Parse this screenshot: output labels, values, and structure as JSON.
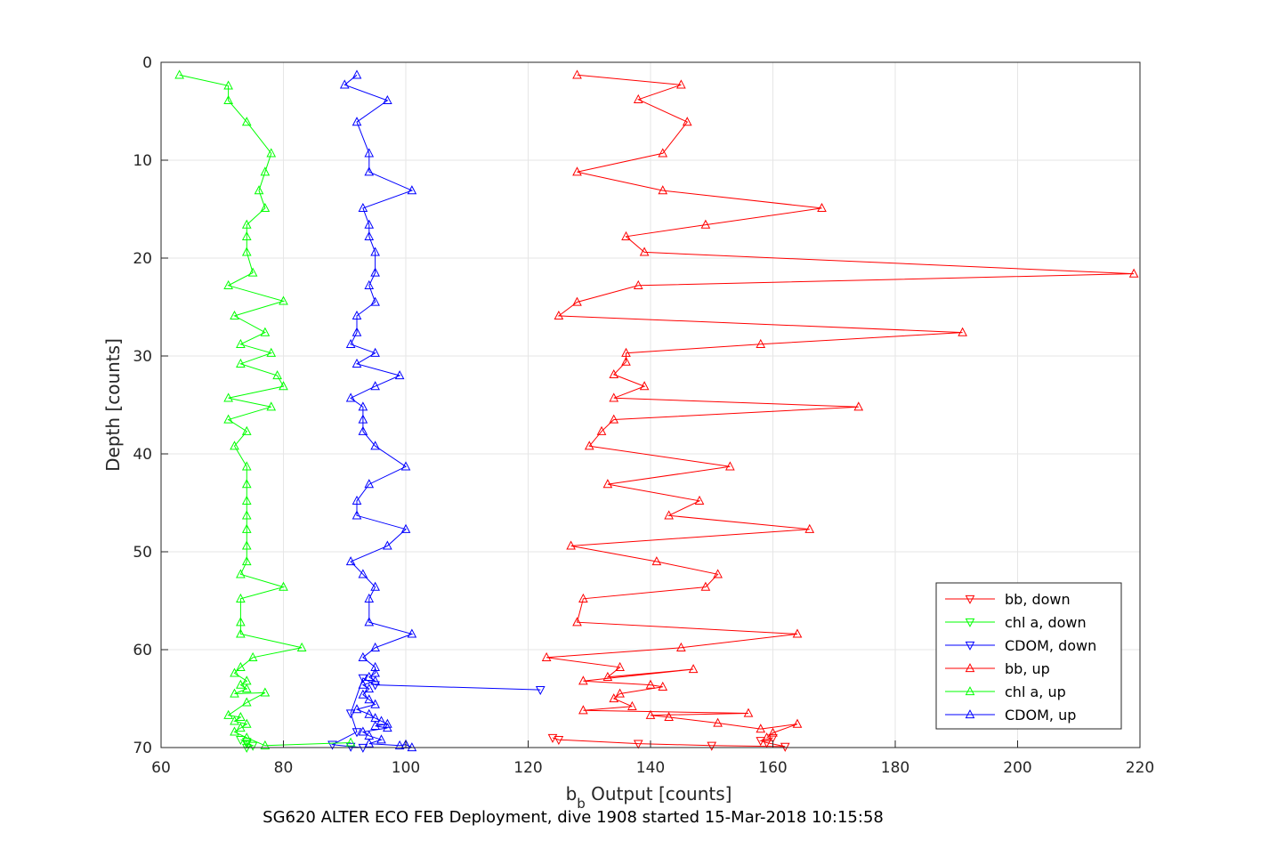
{
  "chart_data": {
    "type": "line",
    "xlabel_main": "b",
    "xlabel_sub": "b",
    "xlabel_rest": " Output [counts]",
    "ylabel": "Depth [counts]",
    "caption": "SG620 ALTER ECO FEB Deployment, dive 1908 started 15-Mar-2018 10:15:58",
    "xlim": [
      60,
      220
    ],
    "ylim": [
      0,
      70
    ],
    "y_reversed": true,
    "grid": true,
    "legend_position": "bottom-right",
    "x_ticks": [
      "60",
      "80",
      "100",
      "120",
      "140",
      "160",
      "180",
      "200",
      "220"
    ],
    "y_ticks": [
      "0",
      "10",
      "20",
      "30",
      "40",
      "50",
      "60",
      "70"
    ],
    "series": [
      {
        "name": "bb, down",
        "color": "#ff0000",
        "marker": "triangle-down",
        "x": [
          124,
          125,
          138,
          150,
          162,
          159,
          158,
          160
        ],
        "y": [
          69.0,
          69.2,
          69.6,
          69.8,
          69.9,
          69.5,
          69.3,
          69.0
        ]
      },
      {
        "name": "chl a, down",
        "color": "#00ff00",
        "marker": "triangle-down",
        "x": [
          73,
          74,
          74,
          75,
          74
        ],
        "y": [
          69.2,
          69.4,
          69.6,
          69.8,
          70.0
        ]
      },
      {
        "name": "CDOM, down",
        "color": "#0000ff",
        "marker": "triangle-down",
        "x": [
          122,
          95,
          93,
          91,
          92,
          88,
          91,
          93
        ],
        "y": [
          64.1,
          63.6,
          62.9,
          66.5,
          68.4,
          69.7,
          69.9,
          70.0
        ]
      },
      {
        "name": "bb, up",
        "color": "#ff0000",
        "marker": "triangle-up",
        "x": [
          128,
          145,
          138,
          146,
          142,
          128,
          142,
          168,
          149,
          136,
          139,
          219,
          138,
          128,
          125,
          191,
          158,
          136,
          136,
          134,
          139,
          134,
          174,
          134,
          132,
          130,
          153,
          133,
          148,
          143,
          166,
          127,
          141,
          151,
          149,
          129,
          128,
          164,
          145,
          123,
          135,
          133,
          147,
          129,
          140,
          142,
          135,
          134,
          137,
          129,
          156,
          140,
          143,
          151,
          158,
          164,
          160,
          159
        ],
        "y": [
          1.3,
          2.3,
          3.8,
          6.1,
          9.3,
          11.2,
          13.1,
          14.9,
          16.6,
          17.8,
          19.4,
          21.6,
          22.8,
          24.5,
          25.9,
          27.6,
          28.8,
          29.7,
          30.6,
          31.9,
          33.1,
          34.3,
          35.2,
          36.5,
          37.7,
          39.2,
          41.3,
          43.1,
          44.8,
          46.3,
          47.7,
          49.4,
          51.0,
          52.3,
          53.6,
          54.8,
          57.2,
          58.4,
          59.8,
          60.8,
          61.8,
          62.8,
          62.0,
          63.2,
          63.6,
          63.8,
          64.5,
          65.0,
          65.8,
          66.2,
          66.5,
          66.7,
          66.9,
          67.5,
          68.1,
          67.6,
          68.5,
          69.0
        ]
      },
      {
        "name": "chl a, up",
        "color": "#00ff00",
        "marker": "triangle-up",
        "x": [
          63,
          71,
          71,
          74,
          78,
          77,
          76,
          77,
          74,
          74,
          74,
          75,
          71,
          80,
          72,
          77,
          73,
          78,
          73,
          79,
          80,
          71,
          78,
          71,
          74,
          72,
          74,
          74,
          74,
          74,
          74,
          74,
          74,
          73,
          80,
          73,
          73,
          73,
          83,
          75,
          73,
          72,
          74,
          73,
          74,
          72,
          77,
          74,
          71,
          73,
          72,
          74,
          73,
          72,
          74,
          77,
          91
        ],
        "y": [
          1.3,
          2.4,
          3.9,
          6.1,
          9.3,
          11.2,
          13.1,
          14.9,
          16.6,
          17.8,
          19.4,
          21.5,
          22.8,
          24.4,
          25.9,
          27.6,
          28.8,
          29.7,
          30.8,
          32.0,
          33.1,
          34.3,
          35.2,
          36.5,
          37.7,
          39.2,
          41.3,
          43.1,
          44.8,
          46.3,
          47.7,
          49.4,
          51.0,
          52.3,
          53.6,
          54.8,
          57.2,
          58.4,
          59.8,
          60.8,
          61.8,
          62.4,
          63.2,
          63.6,
          64.0,
          64.5,
          64.4,
          65.4,
          66.7,
          66.9,
          67.3,
          67.6,
          68.0,
          68.4,
          69.0,
          69.8,
          69.5
        ]
      },
      {
        "name": "CDOM, up",
        "color": "#0000ff",
        "marker": "triangle-up",
        "x": [
          92,
          90,
          97,
          92,
          94,
          94,
          101,
          93,
          94,
          94,
          95,
          95,
          94,
          95,
          92,
          92,
          91,
          95,
          92,
          99,
          95,
          91,
          93,
          93,
          93,
          95,
          100,
          94,
          92,
          92,
          100,
          97,
          91,
          93,
          95,
          94,
          94,
          101,
          95,
          93,
          95,
          95,
          94,
          95,
          93,
          94,
          93,
          94,
          95,
          92,
          94,
          95,
          96,
          97,
          95,
          97,
          93,
          94,
          96,
          94,
          99,
          100,
          101
        ],
        "y": [
          1.3,
          2.3,
          3.9,
          6.1,
          9.3,
          11.2,
          13.1,
          14.9,
          16.6,
          17.8,
          19.4,
          21.5,
          22.8,
          24.5,
          25.9,
          27.6,
          28.8,
          29.7,
          30.8,
          32.0,
          33.1,
          34.3,
          35.2,
          36.5,
          37.7,
          39.2,
          41.3,
          43.1,
          44.8,
          46.3,
          47.7,
          49.4,
          51.0,
          52.3,
          53.6,
          54.8,
          57.2,
          58.4,
          59.8,
          60.8,
          61.8,
          62.4,
          62.8,
          63.2,
          63.6,
          64.0,
          64.6,
          65.1,
          65.6,
          66.1,
          66.6,
          67.0,
          67.3,
          67.6,
          67.8,
          68.0,
          68.4,
          68.8,
          69.2,
          69.6,
          69.8,
          69.7,
          70.0
        ]
      }
    ]
  }
}
